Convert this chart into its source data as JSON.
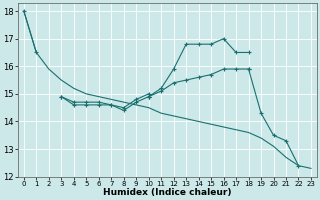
{
  "xlabel": "Humidex (Indice chaleur)",
  "xlim": [
    -0.5,
    23.5
  ],
  "ylim": [
    12,
    18.3
  ],
  "yticks": [
    12,
    13,
    14,
    15,
    16,
    17,
    18
  ],
  "xticks": [
    0,
    1,
    2,
    3,
    4,
    5,
    6,
    7,
    8,
    9,
    10,
    11,
    12,
    13,
    14,
    15,
    16,
    17,
    18,
    19,
    20,
    21,
    22,
    23
  ],
  "bg_color": "#cce8e8",
  "grid_color": "#b0d4d4",
  "line_color": "#1a7070",
  "series": [
    {
      "x": [
        0,
        1
      ],
      "y": [
        18.0,
        16.5
      ],
      "marker": "+"
    },
    {
      "x": [
        0,
        1,
        2,
        3,
        4,
        5,
        6,
        7,
        8,
        9,
        10,
        11,
        12,
        13,
        14,
        15,
        16,
        17,
        18,
        19,
        20,
        21,
        22,
        23
      ],
      "y": [
        18.0,
        16.5,
        15.9,
        15.5,
        15.2,
        15.0,
        14.9,
        14.8,
        14.7,
        14.6,
        14.5,
        14.3,
        14.2,
        14.1,
        14.0,
        13.9,
        13.8,
        13.7,
        13.6,
        13.4,
        13.1,
        12.7,
        12.4,
        12.3
      ],
      "marker": null
    },
    {
      "x": [
        3,
        4,
        5,
        6,
        7,
        8,
        9,
        10
      ],
      "y": [
        14.9,
        14.6,
        14.6,
        14.6,
        14.6,
        14.4,
        14.7,
        14.9
      ],
      "marker": "+"
    },
    {
      "x": [
        3,
        4,
        5,
        6,
        7,
        8,
        9,
        10
      ],
      "y": [
        14.9,
        14.7,
        14.7,
        14.7,
        14.6,
        14.5,
        14.8,
        15.0
      ],
      "marker": "+"
    },
    {
      "x": [
        10,
        11,
        12,
        13,
        14,
        15,
        16,
        17,
        18
      ],
      "y": [
        14.9,
        15.2,
        15.9,
        16.8,
        16.8,
        16.8,
        17.0,
        16.5,
        16.5
      ],
      "marker": "+"
    },
    {
      "x": [
        10,
        11,
        12,
        13,
        14,
        15,
        16,
        17,
        18
      ],
      "y": [
        14.9,
        15.1,
        15.4,
        15.5,
        15.6,
        15.7,
        15.9,
        15.9,
        15.9
      ],
      "marker": "+"
    },
    {
      "x": [
        18,
        19,
        20,
        21,
        22
      ],
      "y": [
        15.9,
        14.3,
        13.5,
        13.3,
        12.4
      ],
      "marker": "+"
    }
  ]
}
